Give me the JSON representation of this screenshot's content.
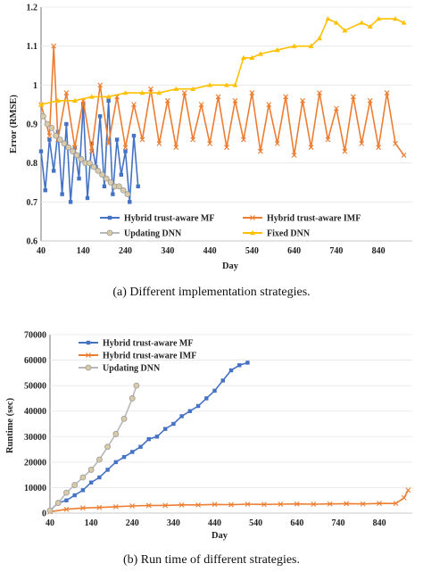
{
  "captions": {
    "a": "(a) Different implementation strategies.",
    "b": "(b) Run time of different strategies."
  },
  "chart_data": [
    {
      "type": "line",
      "title": "",
      "xlabel": "Day",
      "ylabel": "Error (RMSE)",
      "xlim": [
        40,
        920
      ],
      "ylim": [
        0.6,
        1.2
      ],
      "x_ticks": [
        40,
        140,
        240,
        340,
        440,
        540,
        640,
        740,
        840
      ],
      "y_ticks": [
        0.6,
        0.7,
        0.8,
        0.9,
        1,
        1.1,
        1.2
      ],
      "y_tick_labels": [
        "0.6",
        "0.7",
        "0.8",
        "0.9",
        "1",
        "1.1",
        "1.2"
      ],
      "legend_position": "lower-center",
      "series": [
        {
          "name": "Hybrid trust-aware MF",
          "color": "#4472C4",
          "marker": "square",
          "x": [
            40,
            50,
            60,
            70,
            80,
            90,
            100,
            110,
            120,
            130,
            140,
            150,
            160,
            170,
            180,
            190,
            200,
            210,
            220,
            230,
            240,
            250,
            260,
            270
          ],
          "y": [
            0.83,
            0.73,
            0.86,
            0.78,
            0.88,
            0.72,
            0.9,
            0.7,
            0.84,
            0.76,
            0.95,
            0.71,
            0.85,
            0.79,
            0.92,
            0.74,
            0.96,
            0.72,
            0.86,
            0.77,
            0.83,
            0.7,
            0.87,
            0.74
          ]
        },
        {
          "name": "Hybrid trust-aware IMF",
          "color": "#ED7D31",
          "marker": "x",
          "x": [
            40,
            60,
            70,
            80,
            100,
            120,
            140,
            160,
            180,
            200,
            220,
            240,
            260,
            280,
            300,
            320,
            340,
            360,
            380,
            400,
            420,
            440,
            460,
            480,
            500,
            520,
            540,
            560,
            580,
            600,
            620,
            640,
            660,
            680,
            700,
            720,
            740,
            760,
            780,
            800,
            820,
            840,
            860,
            880,
            900
          ],
          "y": [
            0.95,
            0.87,
            1.1,
            0.86,
            0.98,
            0.84,
            0.96,
            0.83,
            1.0,
            0.85,
            0.97,
            0.84,
            0.95,
            0.86,
            0.99,
            0.85,
            0.96,
            0.84,
            0.98,
            0.86,
            0.95,
            0.85,
            0.97,
            0.84,
            0.96,
            0.86,
            0.98,
            0.83,
            0.95,
            0.85,
            0.97,
            0.82,
            0.96,
            0.84,
            0.98,
            0.86,
            0.94,
            0.83,
            0.97,
            0.85,
            0.96,
            0.84,
            0.98,
            0.85,
            0.82
          ]
        },
        {
          "name": "Updating DNN",
          "color": "#A5A5A5",
          "marker": "circle",
          "x": [
            45,
            55,
            65,
            75,
            85,
            95,
            105,
            115,
            125,
            135,
            145,
            155,
            165,
            175,
            185,
            195,
            205,
            215,
            225,
            235,
            245
          ],
          "y": [
            0.92,
            0.9,
            0.89,
            0.87,
            0.86,
            0.85,
            0.84,
            0.83,
            0.82,
            0.81,
            0.8,
            0.8,
            0.79,
            0.78,
            0.77,
            0.76,
            0.75,
            0.74,
            0.74,
            0.73,
            0.72
          ]
        },
        {
          "name": "Fixed DNN",
          "color": "#FFC000",
          "marker": "triangle",
          "x": [
            40,
            80,
            120,
            160,
            200,
            240,
            280,
            320,
            360,
            400,
            440,
            480,
            500,
            520,
            540,
            560,
            600,
            640,
            680,
            700,
            720,
            740,
            760,
            800,
            820,
            840,
            880,
            900
          ],
          "y": [
            0.95,
            0.96,
            0.96,
            0.97,
            0.97,
            0.98,
            0.98,
            0.98,
            0.99,
            0.99,
            1.0,
            1.0,
            1.0,
            1.07,
            1.07,
            1.08,
            1.09,
            1.1,
            1.1,
            1.12,
            1.17,
            1.16,
            1.14,
            1.16,
            1.15,
            1.17,
            1.17,
            1.16
          ]
        }
      ]
    },
    {
      "type": "line",
      "title": "",
      "xlabel": "Day",
      "ylabel": "Runtime (sec)",
      "xlim": [
        40,
        920
      ],
      "ylim": [
        0,
        70000
      ],
      "x_ticks": [
        40,
        140,
        240,
        340,
        440,
        540,
        640,
        740,
        840
      ],
      "y_ticks": [
        0,
        10000,
        20000,
        30000,
        40000,
        50000,
        60000,
        70000
      ],
      "legend_position": "top-left",
      "series": [
        {
          "name": "Hybrid trust-aware MF",
          "color": "#4472C4",
          "marker": "square",
          "x": [
            40,
            60,
            80,
            100,
            120,
            140,
            160,
            180,
            200,
            220,
            240,
            260,
            280,
            300,
            320,
            340,
            360,
            380,
            400,
            420,
            440,
            460,
            480,
            500,
            520
          ],
          "y": [
            1000,
            4000,
            5000,
            7000,
            9000,
            12000,
            14000,
            17000,
            20000,
            22000,
            24000,
            26000,
            29000,
            30000,
            33000,
            35000,
            38000,
            40000,
            42000,
            45000,
            48000,
            52000,
            56000,
            58000,
            59000
          ]
        },
        {
          "name": "Hybrid trust-aware IMF",
          "color": "#ED7D31",
          "marker": "x",
          "x": [
            40,
            80,
            120,
            160,
            200,
            240,
            280,
            320,
            360,
            400,
            440,
            480,
            520,
            560,
            600,
            640,
            680,
            720,
            760,
            800,
            840,
            880,
            900,
            910
          ],
          "y": [
            500,
            1500,
            2000,
            2200,
            2500,
            2800,
            3000,
            3000,
            3200,
            3200,
            3400,
            3300,
            3500,
            3400,
            3500,
            3600,
            3500,
            3600,
            3700,
            3600,
            3800,
            3800,
            6000,
            9000
          ]
        },
        {
          "name": "Updating DNN",
          "color": "#A5A5A5",
          "marker": "circle",
          "x": [
            40,
            60,
            80,
            100,
            120,
            140,
            160,
            180,
            200,
            220,
            240,
            250
          ],
          "y": [
            1000,
            4000,
            8000,
            11000,
            14000,
            17000,
            21000,
            26000,
            31000,
            37000,
            45000,
            50000
          ]
        }
      ]
    }
  ]
}
